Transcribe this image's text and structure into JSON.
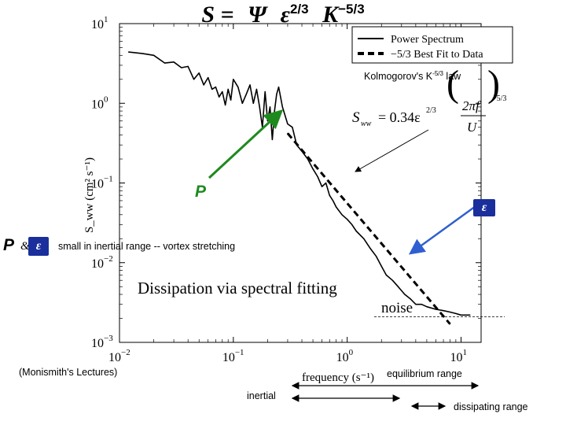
{
  "title": {
    "symbol": "S",
    "eq": "=",
    "psi": "Ψ",
    "eps": "ε",
    "exp1": "2/3",
    "k": "K",
    "exp2": "−5/3"
  },
  "annotations": {
    "kolmogorov_base": "Kolmogorov's K",
    "kolmogorov_exp": "-5/3",
    "kolmogorov_tail": " law",
    "formula_lhs": "S",
    "formula_sub": "ww",
    "formula_rhs": "= 0.34ε",
    "formula_exp": "2/3",
    "formula_num": "2πf",
    "formula_den": "U",
    "formula_outer_exp": "−5/3",
    "p_green": "P",
    "eps_right": "ε",
    "p_left": "P",
    "amp": "&",
    "eps_left": "ε",
    "inertial_note": "small in inertial range -- vortex stretching",
    "dissipation": "Dissipation via spectral fitting",
    "noise": "noise",
    "source": "(Monismith's Lectures)",
    "equilibrium": "equilibrium range",
    "inertial": "inertial",
    "dissipating": "dissipating range"
  },
  "colors": {
    "green_arrow": "#1e8a1e",
    "blue_arrow": "#2f5fd0",
    "p_green": "#1e8a1e",
    "eps_badge": "#1a2f9c"
  },
  "chart_data": {
    "type": "line",
    "x_scale": "log",
    "y_scale": "log",
    "xlim": [
      0.01,
      15
    ],
    "ylim": [
      0.001,
      10
    ],
    "xlabel": "frequency (s⁻¹)",
    "ylabel": "S_ww (cm² s⁻¹)",
    "x_ticks": [
      {
        "base": "10",
        "exp": "−2"
      },
      {
        "base": "10",
        "exp": "−1"
      },
      {
        "base": "10",
        "exp": "0"
      },
      {
        "base": "10",
        "exp": "1"
      }
    ],
    "y_ticks": [
      {
        "base": "10",
        "exp": "−3"
      },
      {
        "base": "10",
        "exp": "−2"
      },
      {
        "base": "10",
        "exp": "−1"
      },
      {
        "base": "10",
        "exp": "0"
      },
      {
        "base": "10",
        "exp": "1"
      }
    ],
    "legend": {
      "position": "top-right",
      "entries": [
        "Power Spectrum",
        "−5/3 Best Fit to Data"
      ]
    },
    "series": [
      {
        "name": "Power Spectrum",
        "style": "solid",
        "x": [
          0.012,
          0.016,
          0.02,
          0.025,
          0.03,
          0.035,
          0.04,
          0.045,
          0.05,
          0.055,
          0.06,
          0.065,
          0.07,
          0.075,
          0.08,
          0.085,
          0.09,
          0.095,
          0.1,
          0.11,
          0.12,
          0.13,
          0.14,
          0.15,
          0.16,
          0.17,
          0.18,
          0.19,
          0.2,
          0.21,
          0.22,
          0.23,
          0.24,
          0.25,
          0.27,
          0.3,
          0.33,
          0.36,
          0.4,
          0.45,
          0.5,
          0.55,
          0.6,
          0.65,
          0.7,
          0.75,
          0.8,
          0.9,
          1.0,
          1.1,
          1.2,
          1.4,
          1.6,
          1.8,
          2.0,
          2.2,
          2.5,
          2.8,
          3.2,
          3.6,
          4.0,
          4.5,
          5.0,
          6.0,
          7.0,
          8.0,
          9.0,
          10.0,
          12.0
        ],
        "y": [
          4.4,
          4.2,
          4.0,
          3.2,
          3.3,
          2.8,
          2.9,
          2.0,
          2.4,
          1.7,
          2.1,
          1.5,
          1.6,
          1.2,
          1.4,
          0.95,
          1.5,
          1.1,
          2.0,
          1.6,
          1.0,
          1.3,
          1.7,
          1.0,
          1.5,
          0.9,
          0.5,
          1.4,
          0.6,
          0.9,
          0.35,
          0.8,
          1.3,
          1.6,
          0.9,
          0.55,
          0.5,
          0.3,
          0.25,
          0.2,
          0.15,
          0.12,
          0.09,
          0.1,
          0.07,
          0.06,
          0.05,
          0.04,
          0.035,
          0.03,
          0.025,
          0.02,
          0.015,
          0.012,
          0.009,
          0.007,
          0.006,
          0.005,
          0.004,
          0.0035,
          0.003,
          0.003,
          0.0028,
          0.0026,
          0.0025,
          0.0024,
          0.0023,
          0.0022,
          0.0022
        ]
      },
      {
        "name": "−5/3 Best Fit to Data",
        "style": "dashed",
        "x": [
          0.3,
          8.0
        ],
        "y": [
          0.42,
          0.0017
        ]
      }
    ],
    "noise_level_y": 0.0021
  }
}
